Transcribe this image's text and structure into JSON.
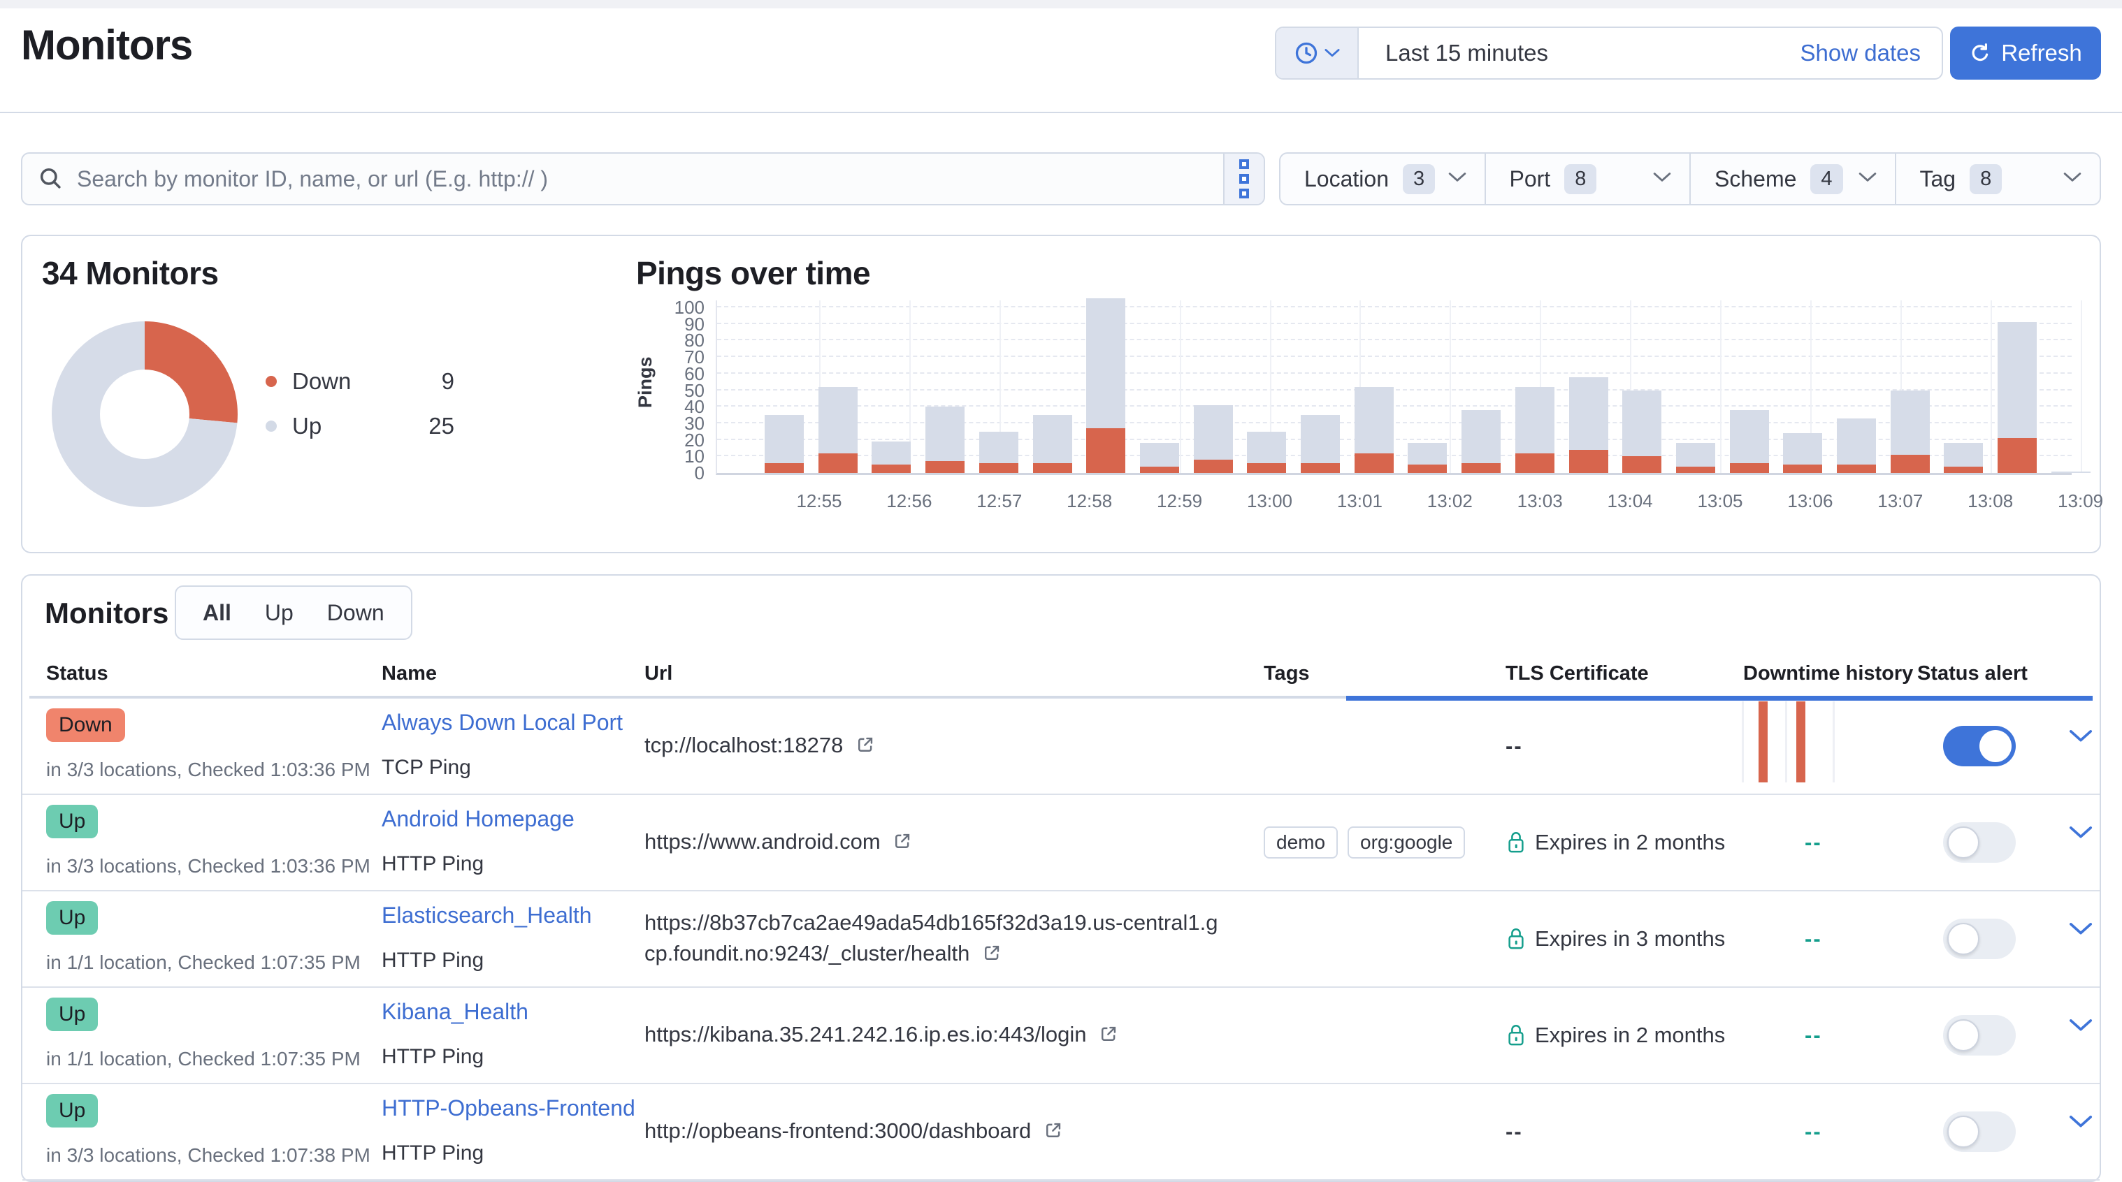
{
  "header": {
    "title": "Monitors",
    "time_range": "Last 15 minutes",
    "show_dates_label": "Show dates",
    "refresh_label": "Refresh"
  },
  "search": {
    "placeholder": "Search by monitor ID, name, or url (E.g. http:// )"
  },
  "filters": [
    {
      "label": "Location",
      "count": "3"
    },
    {
      "label": "Port",
      "count": "8"
    },
    {
      "label": "Scheme",
      "count": "4"
    },
    {
      "label": "Tag",
      "count": "8"
    }
  ],
  "colors": {
    "accent_blue": "#3e74d9",
    "link_blue": "#3d6dd1",
    "down_orange": "#d7654d",
    "up_gray": "#d6dce8",
    "teal": "#149e8c",
    "badge_down": "#f0846c",
    "badge_up": "#6dccb1"
  },
  "overview": {
    "title": "34 Monitors",
    "donut": {
      "down": 9,
      "up": 25
    },
    "legend": [
      {
        "label": "Down",
        "value": "9",
        "color": "#d7654d"
      },
      {
        "label": "Up",
        "value": "25",
        "color": "#d3dae6"
      }
    ]
  },
  "chart_data": {
    "type": "bar",
    "stacked": true,
    "title": "Pings over time",
    "xlabel": "",
    "ylabel": "Pings",
    "ylim": [
      0,
      100
    ],
    "grid": true,
    "legend_position": "none",
    "x_tick_labels": [
      "12:55",
      "12:56",
      "12:57",
      "12:58",
      "12:59",
      "13:00",
      "13:01",
      "13:02",
      "13:03",
      "13:04",
      "13:05",
      "13:06",
      "13:07",
      "13:08",
      "13:09"
    ],
    "y_tick_labels": [
      0,
      10,
      20,
      30,
      40,
      50,
      60,
      70,
      80,
      90,
      100
    ],
    "series": [
      {
        "name": "Down",
        "color": "#d7654d",
        "values": [
          6,
          12,
          5,
          7,
          6,
          6,
          27,
          4,
          8,
          6,
          6,
          12,
          5,
          6,
          12,
          14,
          10,
          4,
          6,
          5,
          5,
          11,
          4,
          21,
          0
        ]
      },
      {
        "name": "Up",
        "color": "#d6dce8",
        "values": [
          29,
          40,
          14,
          33,
          19,
          29,
          79,
          14,
          33,
          19,
          29,
          40,
          13,
          32,
          40,
          44,
          40,
          14,
          32,
          19,
          28,
          39,
          14,
          70,
          1
        ]
      }
    ]
  },
  "monitors_panel": {
    "title": "Monitors",
    "tabs": [
      "All",
      "Up",
      "Down"
    ],
    "active_tab": "All",
    "columns": [
      "Status",
      "Name",
      "Url",
      "Tags",
      "TLS Certificate",
      "Downtime history",
      "Status alert"
    ],
    "rows": [
      {
        "status": "Down",
        "status_detail": "in 3/3 locations, Checked 1:03:36 PM",
        "name": "Always Down Local Port",
        "type": "TCP Ping",
        "url": "tcp://localhost:18278",
        "tags": [],
        "tls": "--",
        "downtime": "bars",
        "alert": true
      },
      {
        "status": "Up",
        "status_detail": "in 3/3 locations, Checked 1:03:36 PM",
        "name": "Android Homepage",
        "type": "HTTP Ping",
        "url": "https://www.android.com",
        "tags": [
          "demo",
          "org:google"
        ],
        "tls": "Expires in 2 months",
        "downtime": "--",
        "alert": false
      },
      {
        "status": "Up",
        "status_detail": "in 1/1 location, Checked 1:07:35 PM",
        "name": "Elasticsearch_Health",
        "type": "HTTP Ping",
        "url": "https://8b37cb7ca2ae49ada54db165f32d3a19.us-central1.gcp.foundit.no:9243/_cluster/health",
        "tags": [],
        "tls": "Expires in 3 months",
        "downtime": "--",
        "alert": false
      },
      {
        "status": "Up",
        "status_detail": "in 1/1 location, Checked 1:07:35 PM",
        "name": "Kibana_Health",
        "type": "HTTP Ping",
        "url": "https://kibana.35.241.242.16.ip.es.io:443/login",
        "tags": [],
        "tls": "Expires in 2 months",
        "downtime": "--",
        "alert": false
      },
      {
        "status": "Up",
        "status_detail": "in 3/3 locations, Checked 1:07:38 PM",
        "name": "HTTP-Opbeans-Frontend",
        "type": "HTTP Ping",
        "url": "http://opbeans-frontend:3000/dashboard",
        "tags": [],
        "tls": "--",
        "downtime": "--",
        "alert": false
      }
    ]
  }
}
